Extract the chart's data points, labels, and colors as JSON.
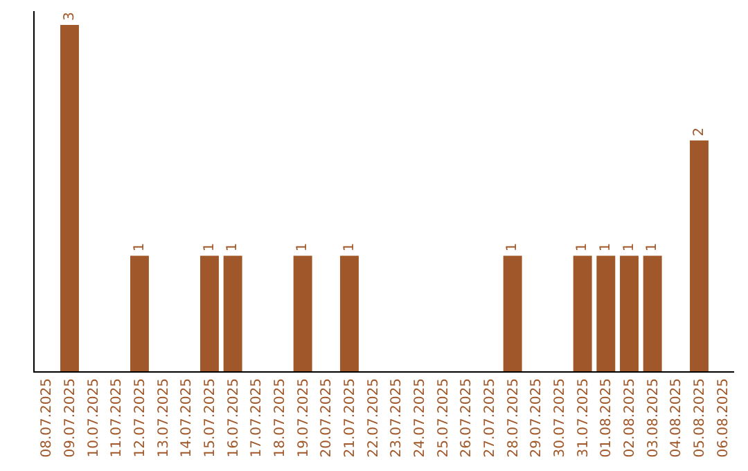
{
  "chart_data": {
    "type": "bar",
    "categories": [
      "08.07.2025",
      "09.07.2025",
      "10.07.2025",
      "11.07.2025",
      "12.07.2025",
      "13.07.2025",
      "14.07.2025",
      "15.07.2025",
      "16.07.2025",
      "17.07.2025",
      "18.07.2025",
      "19.07.2025",
      "20.07.2025",
      "21.07.2025",
      "22.07.2025",
      "23.07.2025",
      "24.07.2025",
      "25.07.2025",
      "26.07.2025",
      "27.07.2025",
      "28.07.2025",
      "29.07.2025",
      "30.07.2025",
      "31.07.2025",
      "01.08.2025",
      "02.08.2025",
      "03.08.2025",
      "04.08.2025",
      "05.08.2025",
      "06.08.2025"
    ],
    "values": [
      0,
      3,
      0,
      0,
      1,
      0,
      0,
      1,
      1,
      0,
      0,
      1,
      0,
      1,
      0,
      0,
      0,
      0,
      0,
      0,
      1,
      0,
      0,
      1,
      1,
      1,
      1,
      0,
      2,
      0
    ],
    "value_labels": [
      null,
      "3",
      null,
      null,
      "1",
      null,
      null,
      "1",
      "1",
      null,
      null,
      "1",
      null,
      "1",
      null,
      null,
      null,
      null,
      null,
      null,
      "1",
      null,
      null,
      "1",
      "1",
      "1",
      "1",
      null,
      "2",
      null
    ],
    "color": "#a0582a",
    "ylim": [
      0,
      3.12
    ],
    "tick_labels": "x",
    "legend": false
  }
}
